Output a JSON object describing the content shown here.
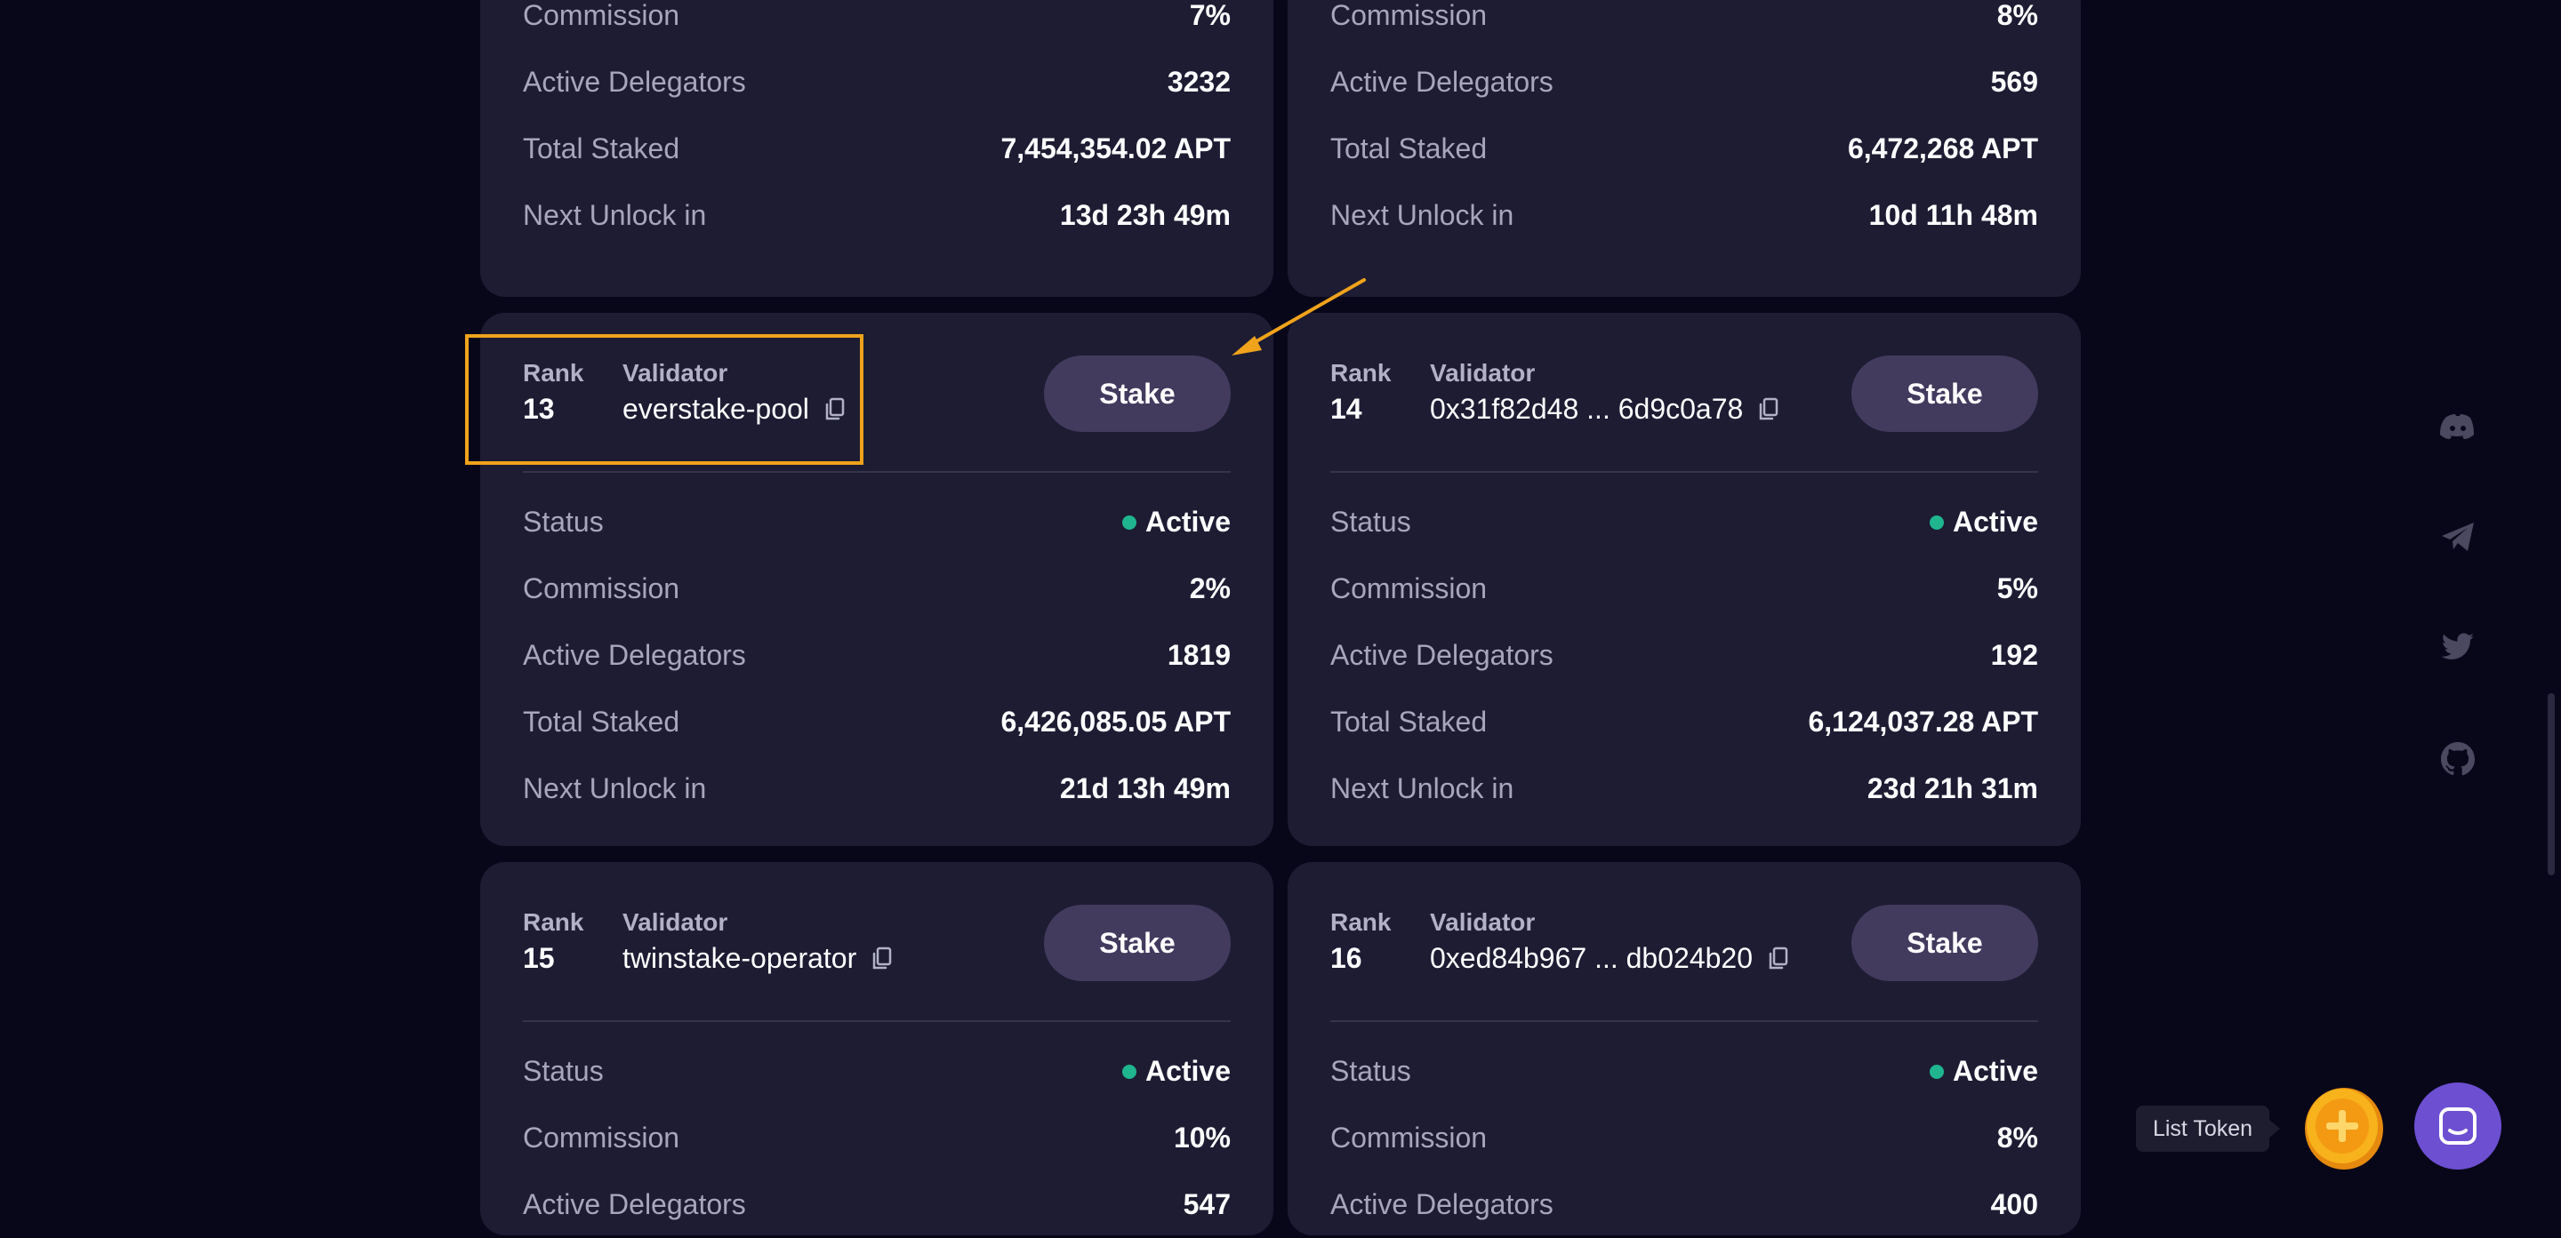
{
  "cards": [
    {
      "rows": [
        {
          "key": "Commission",
          "value": "7%"
        },
        {
          "key": "Active Delegators",
          "value": "3232"
        },
        {
          "key": "Total Staked",
          "value": "7,454,354.02 APT"
        },
        {
          "key": "Next Unlock in",
          "value": "13d 23h 49m"
        }
      ]
    },
    {
      "rows": [
        {
          "key": "Commission",
          "value": "8%"
        },
        {
          "key": "Active Delegators",
          "value": "569"
        },
        {
          "key": "Total Staked",
          "value": "6,472,268 APT"
        },
        {
          "key": "Next Unlock in",
          "value": "10d 11h 48m"
        }
      ]
    },
    {
      "rank_label": "Rank",
      "validator_label": "Validator",
      "rank": "13",
      "validator": "everstake-pool",
      "stake_label": "Stake",
      "rows": [
        {
          "key": "Status",
          "value": "Active"
        },
        {
          "key": "Commission",
          "value": "2%"
        },
        {
          "key": "Active Delegators",
          "value": "1819"
        },
        {
          "key": "Total Staked",
          "value": "6,426,085.05 APT"
        },
        {
          "key": "Next Unlock in",
          "value": "21d 13h 49m"
        }
      ]
    },
    {
      "rank_label": "Rank",
      "validator_label": "Validator",
      "rank": "14",
      "validator": "0x31f82d48 ... 6d9c0a78",
      "stake_label": "Stake",
      "rows": [
        {
          "key": "Status",
          "value": "Active"
        },
        {
          "key": "Commission",
          "value": "5%"
        },
        {
          "key": "Active Delegators",
          "value": "192"
        },
        {
          "key": "Total Staked",
          "value": "6,124,037.28 APT"
        },
        {
          "key": "Next Unlock in",
          "value": "23d 21h 31m"
        }
      ]
    },
    {
      "rank_label": "Rank",
      "validator_label": "Validator",
      "rank": "15",
      "validator": "twinstake-operator",
      "stake_label": "Stake",
      "rows": [
        {
          "key": "Status",
          "value": "Active"
        },
        {
          "key": "Commission",
          "value": "10%"
        },
        {
          "key": "Active Delegators",
          "value": "547"
        }
      ]
    },
    {
      "rank_label": "Rank",
      "validator_label": "Validator",
      "rank": "16",
      "validator": "0xed84b967 ... db024b20",
      "stake_label": "Stake",
      "rows": [
        {
          "key": "Status",
          "value": "Active"
        },
        {
          "key": "Commission",
          "value": "8%"
        },
        {
          "key": "Active Delegators",
          "value": "400"
        }
      ]
    }
  ],
  "colors": {
    "accent": "#f0a31b",
    "active": "#1fb58f",
    "stake_button": "#433b5e",
    "chat": "#6d4fd2"
  },
  "social_icons": [
    "discord-icon",
    "telegram-icon",
    "twitter-icon",
    "github-icon"
  ],
  "list_token_tooltip": "List Token"
}
